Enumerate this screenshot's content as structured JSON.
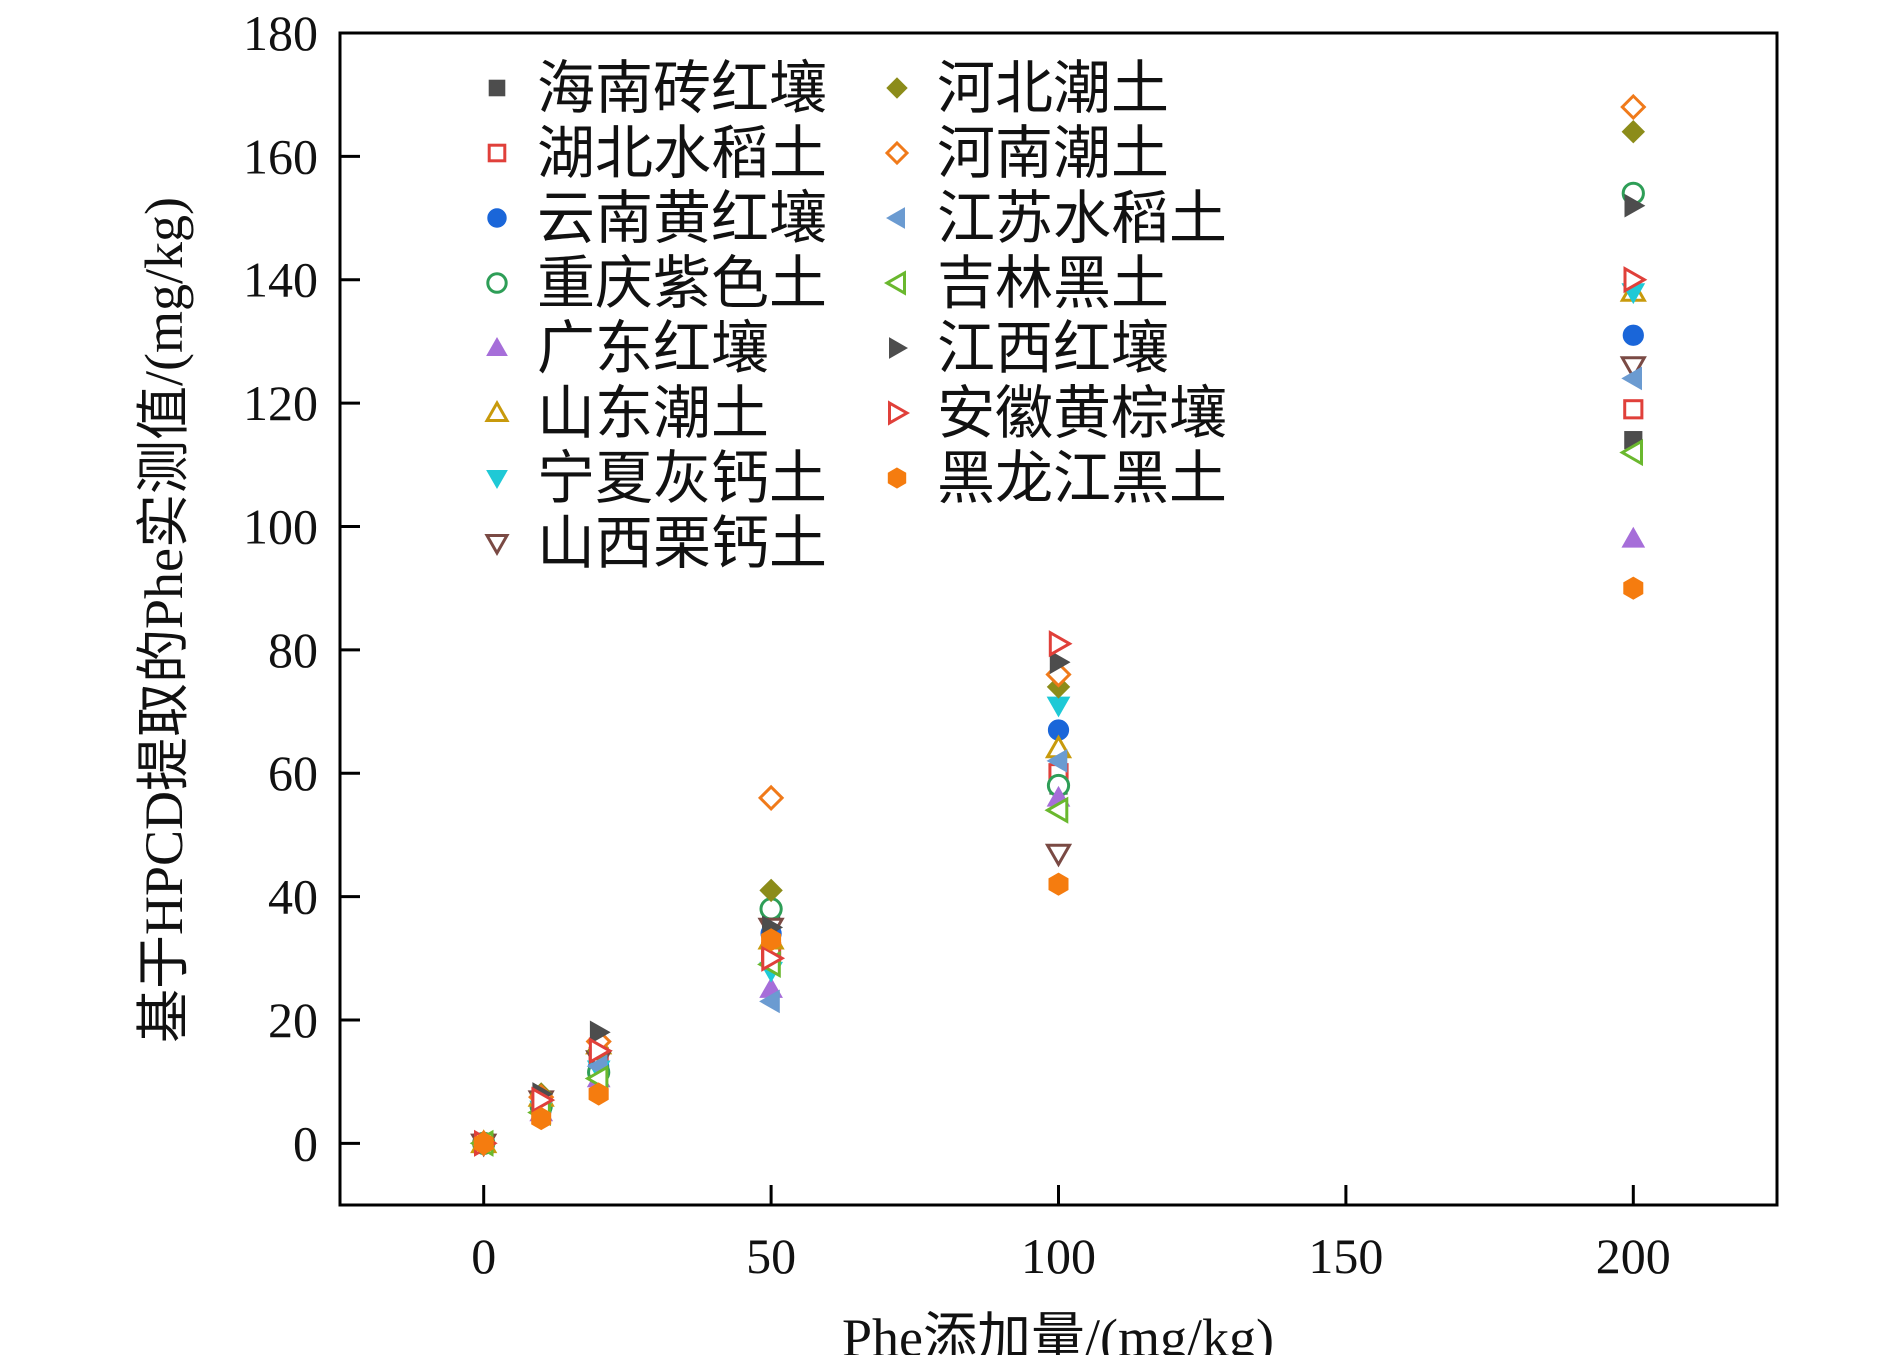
{
  "chart_data": {
    "type": "scatter",
    "xlabel": "Phe添加量/(mg/kg)",
    "ylabel": "基于HPCD提取的Phe实测值/(mg/kg)",
    "xlim": [
      -25,
      225
    ],
    "ylim": [
      -10,
      180
    ],
    "xticks": [
      0,
      50,
      100,
      150,
      200
    ],
    "yticks": [
      0,
      20,
      40,
      60,
      80,
      100,
      120,
      140,
      160,
      180
    ],
    "grid": false,
    "legend_position": "top-left",
    "x": [
      0,
      10,
      20,
      50,
      100,
      200
    ],
    "series": [
      {
        "name": "海南砖红壤",
        "marker": "square",
        "filled": true,
        "color": "#4d4d4d",
        "values": [
          0,
          7,
          13,
          36,
          58,
          114
        ]
      },
      {
        "name": "湖北水稻土",
        "marker": "square",
        "filled": false,
        "color": "#e0403a",
        "values": [
          0,
          6.5,
          14,
          31,
          60,
          119
        ]
      },
      {
        "name": "云南黄红壤",
        "marker": "circle",
        "filled": true,
        "color": "#1a66d9",
        "values": [
          0,
          5.5,
          12.5,
          34,
          67,
          131
        ]
      },
      {
        "name": "重庆紫色土",
        "marker": "circle",
        "filled": false,
        "color": "#2e9e57",
        "values": [
          0,
          6,
          11.5,
          38,
          58,
          154
        ]
      },
      {
        "name": "广东红壤",
        "marker": "triangle-up",
        "filled": true,
        "color": "#a66ed9",
        "values": [
          0,
          5,
          10.5,
          25,
          56,
          98
        ]
      },
      {
        "name": "山东潮土",
        "marker": "triangle-up",
        "filled": false,
        "color": "#c89a0c",
        "values": [
          0,
          7.5,
          16,
          33,
          64,
          138
        ]
      },
      {
        "name": "宁夏灰钙土",
        "marker": "triangle-down",
        "filled": true,
        "color": "#1fc9d6",
        "values": [
          0,
          5.5,
          12,
          28,
          71,
          138
        ]
      },
      {
        "name": "山西栗钙土",
        "marker": "triangle-down",
        "filled": false,
        "color": "#7a4a44",
        "values": [
          0,
          7,
          13.5,
          35,
          47,
          126
        ]
      },
      {
        "name": "河北潮土",
        "marker": "diamond",
        "filled": true,
        "color": "#8c8c1a",
        "values": [
          0,
          8,
          15,
          41,
          74,
          164
        ]
      },
      {
        "name": "河南潮土",
        "marker": "diamond",
        "filled": false,
        "color": "#f07a1a",
        "values": [
          0,
          7.5,
          16.5,
          56,
          76,
          168
        ]
      },
      {
        "name": "江苏水稻土",
        "marker": "triangle-left",
        "filled": true,
        "color": "#6b9bd1",
        "values": [
          0,
          5,
          12.5,
          23,
          62,
          124
        ]
      },
      {
        "name": "吉林黑土",
        "marker": "triangle-left",
        "filled": false,
        "color": "#6ab82e",
        "values": [
          0,
          5,
          10.5,
          29,
          54,
          112
        ]
      },
      {
        "name": "江西红壤",
        "marker": "triangle-right",
        "filled": true,
        "color": "#4d4d4d",
        "values": [
          0,
          8,
          18,
          35,
          78,
          152
        ]
      },
      {
        "name": "安徽黄棕壤",
        "marker": "triangle-right",
        "filled": false,
        "color": "#e0403a",
        "values": [
          0,
          7,
          15,
          30,
          81,
          140
        ]
      },
      {
        "name": "黑龙江黑土",
        "marker": "hexagon",
        "filled": true,
        "color": "#f57c0f",
        "values": [
          0,
          4,
          8,
          33,
          42,
          90
        ]
      }
    ]
  }
}
